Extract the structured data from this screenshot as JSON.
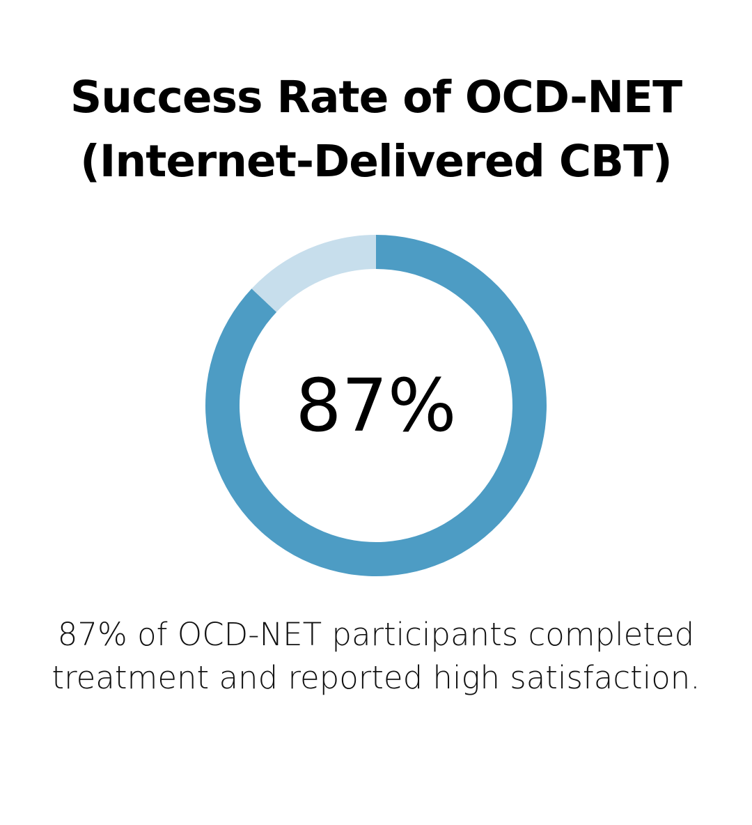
{
  "chart_data": {
    "type": "pie",
    "title_lines": [
      "Success Rate of OCD-NET",
      "(Internet-Delivered CBT)"
    ],
    "center_label": "87%",
    "values": [
      87,
      13
    ],
    "colors": [
      "#4d9cc4",
      "#c7deec"
    ],
    "caption_lines": [
      "87% of OCD-NET participants completed",
      "treatment and reported high satisfaction."
    ]
  }
}
